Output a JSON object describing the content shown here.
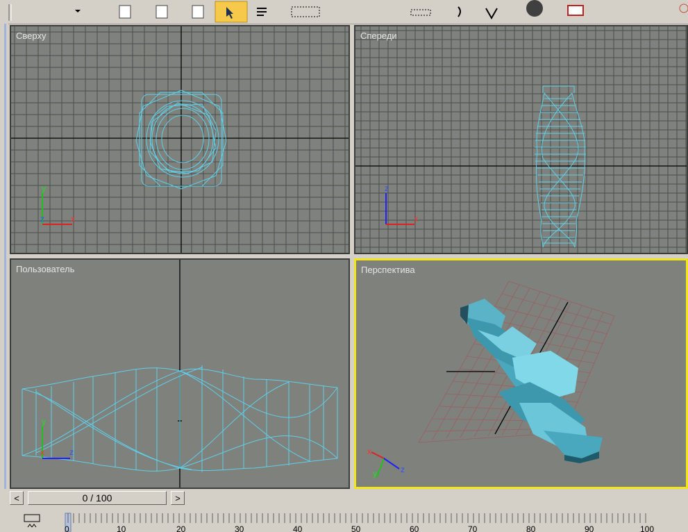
{
  "viewports": {
    "top": {
      "label": "Сверху",
      "axis_up": "y",
      "axis_right": "x",
      "axis_origin": "z"
    },
    "front": {
      "label": "Спереди",
      "axis_up": "z",
      "axis_right": "x"
    },
    "user": {
      "label": "Пользователь",
      "axis_up": "y",
      "axis_right": "z",
      "axis_origin": "x"
    },
    "perspective": {
      "label": "Перспектива",
      "axis_left": "x",
      "axis_right": "z",
      "axis_down": "y"
    }
  },
  "time_slider": {
    "value": "0 / 100",
    "prev": "<",
    "next": ">"
  },
  "timeline": {
    "ticks": [
      "0",
      "10",
      "20",
      "30",
      "40",
      "50",
      "60",
      "70",
      "80",
      "90",
      "100"
    ]
  },
  "colors": {
    "viewport_bg": "#7e817c",
    "grid": "#4b4e4b",
    "wire": "#5fd0ea",
    "active_border": "#f2e61a",
    "axis_x": "#e02020",
    "axis_y": "#20c020",
    "axis_z": "#2020ff"
  }
}
